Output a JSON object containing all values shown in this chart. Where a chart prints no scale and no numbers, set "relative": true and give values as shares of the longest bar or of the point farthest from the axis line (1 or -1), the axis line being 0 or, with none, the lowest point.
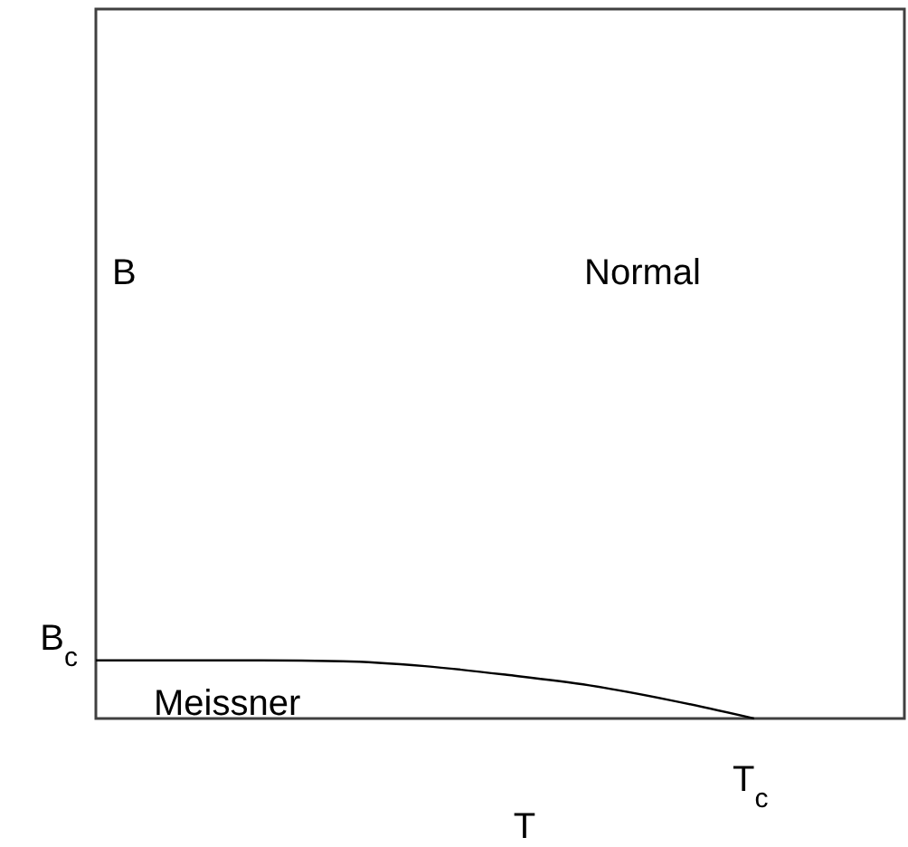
{
  "chart_data": {
    "type": "line",
    "relative": true,
    "xlabel": "T",
    "categories": [
      null,
      null,
      null,
      null,
      null,
      null,
      null,
      null,
      null
    ],
    "series": [
      {
        "color": "#000000",
        "values": [
          1,
          1,
          1,
          0.985,
          0.9,
          0.75,
          0.57,
          0.31,
          0
        ]
      }
    ],
    "annotations": [
      "Normal",
      "Meissner",
      "B",
      "B$_{c}$",
      "T$_{c}$"
    ]
  }
}
